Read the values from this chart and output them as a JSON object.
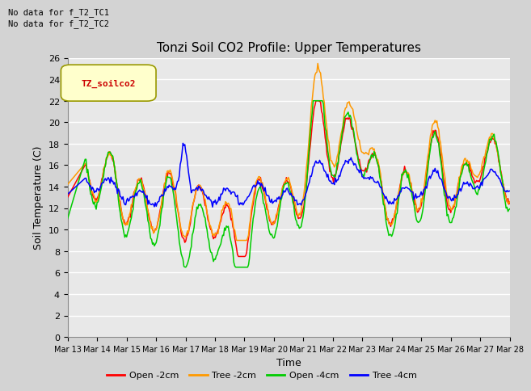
{
  "title": "Tonzi Soil CO2 Profile: Upper Temperatures",
  "xlabel": "Time",
  "ylabel": "Soil Temperature (C)",
  "ylim": [
    0,
    26
  ],
  "yticks": [
    0,
    2,
    4,
    6,
    8,
    10,
    12,
    14,
    16,
    18,
    20,
    22,
    24,
    26
  ],
  "note1": "No data for f_T2_TC1",
  "note2": "No data for f_T2_TC2",
  "legend_label": "TZ_soilco2",
  "series_labels": [
    "Open -2cm",
    "Tree -2cm",
    "Open -4cm",
    "Tree -4cm"
  ],
  "series_colors": [
    "#ff0000",
    "#ff9900",
    "#00cc00",
    "#0000ff"
  ],
  "fig_bg_color": "#d3d3d3",
  "plot_bg_color": "#e8e8e8",
  "grid_color": "#ffffff",
  "xtick_labels": [
    "Mar 13",
    "Mar 14",
    "Mar 15",
    "Mar 16",
    "Mar 17",
    "Mar 18",
    "Mar 19",
    "Mar 20",
    "Mar 21",
    "Mar 22",
    "Mar 23",
    "Mar 24",
    "Mar 25",
    "Mar 26",
    "Mar 27",
    "Mar 28"
  ],
  "linewidth": 1.1,
  "n_points": 480
}
